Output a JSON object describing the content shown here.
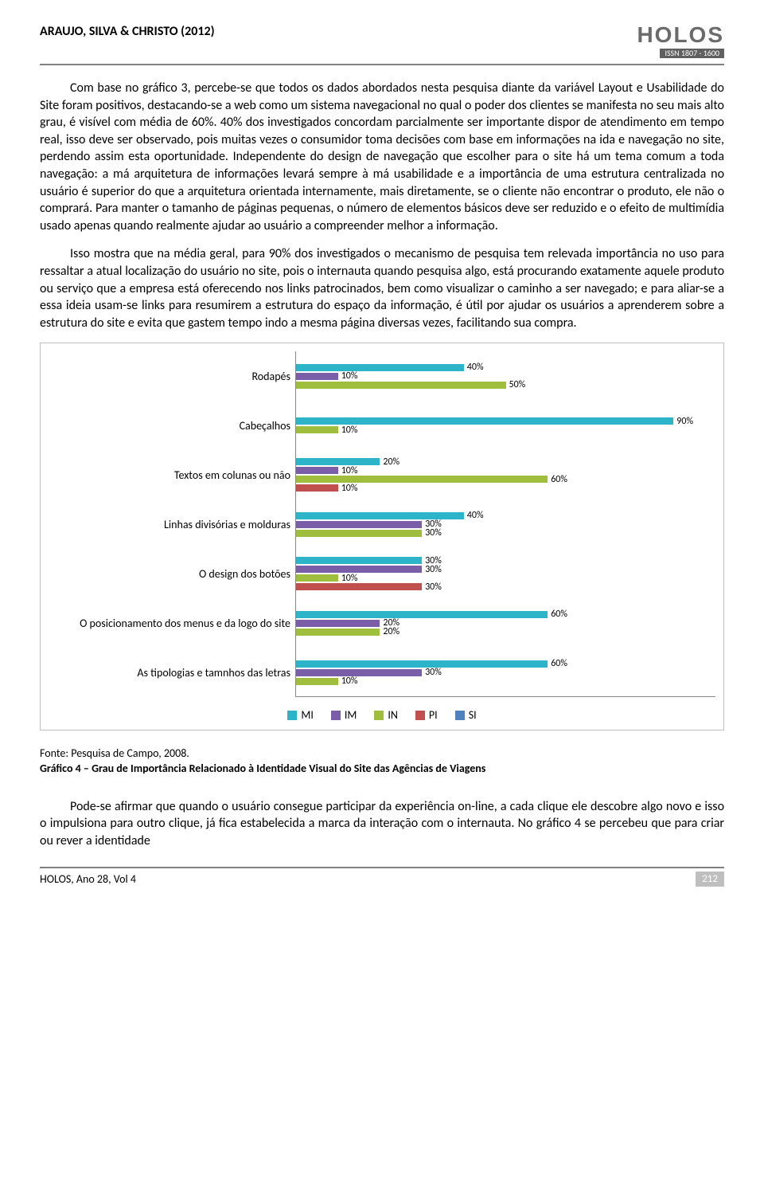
{
  "header": {
    "authors": "ARAUJO, SILVA & CHRISTO (2012)",
    "journal": "HOLOS",
    "issn": "ISSN 1807 - 1600"
  },
  "paragraphs": {
    "p1": "Com base no gráfico 3, percebe-se que todos os dados abordados nesta pesquisa diante da variável Layout e Usabilidade do Site foram positivos, destacando-se a web como um sistema navegacional no qual o poder dos clientes se manifesta no seu mais alto grau, é visível com média de 60%. 40% dos investigados concordam parcialmente ser importante dispor de atendimento em tempo real, isso deve ser observado, pois muitas vezes o consumidor toma decisões com base em informações na ida e navegação no site, perdendo assim esta oportunidade. Independente do design de navegação que escolher para o site há um tema comum a toda navegação: a má arquitetura de informações levará sempre à má usabilidade e a importância de uma estrutura centralizada no usuário é superior do que a arquitetura orientada internamente, mais diretamente, se o cliente não encontrar o produto, ele não o comprará. Para manter o tamanho de páginas pequenas, o número de elementos básicos deve ser reduzido e o efeito de multimídia usado apenas quando realmente ajudar ao usuário a compreender melhor a informação.",
    "p2": "Isso mostra que na média geral, para 90% dos investigados o mecanismo de pesquisa tem relevada importância no uso para ressaltar a atual localização do usuário no site, pois o internauta quando pesquisa algo, está procurando exatamente aquele produto ou serviço que a empresa está oferecendo nos links patrocinados, bem como visualizar o caminho a ser navegado; e para aliar-se a essa ideia usam-se links para resumirem a estrutura do espaço da informação, é útil por ajudar os usuários a aprenderem sobre a estrutura do site e evita que gastem tempo indo a mesma página diversas vezes, facilitando sua compra.",
    "p3": "Pode-se afirmar que quando o usuário consegue participar da experiência on-line, a cada clique ele descobre algo novo e isso o impulsiona para outro clique, já fica estabelecida a marca da interação com o internauta. No gráfico 4 se percebeu que para criar ou rever a identidade"
  },
  "chart": {
    "type": "bar-horizontal-grouped",
    "max_scale": 100,
    "colors": {
      "MI": "#2eb4c8",
      "IM": "#7a5fa8",
      "IN": "#9fbe3d",
      "PI": "#c0504d",
      "SI": "#4f81bd"
    },
    "categories": [
      {
        "label": "Rodapés",
        "bars": [
          {
            "series": "MI",
            "value": 40,
            "text": "40%"
          },
          {
            "series": "IM",
            "value": 10,
            "text": "10%"
          },
          {
            "series": "IN",
            "value": 50,
            "text": "50%"
          }
        ]
      },
      {
        "label": "Cabeçalhos",
        "bars": [
          {
            "series": "MI",
            "value": 90,
            "text": "90%"
          },
          {
            "series": "IN",
            "value": 10,
            "text": "10%"
          }
        ]
      },
      {
        "label": "Textos em colunas ou não",
        "bars": [
          {
            "series": "MI",
            "value": 20,
            "text": "20%"
          },
          {
            "series": "IM",
            "value": 10,
            "text": "10%"
          },
          {
            "series": "IN",
            "value": 60,
            "text": "60%"
          },
          {
            "series": "PI",
            "value": 10,
            "text": "10%"
          }
        ]
      },
      {
        "label": "Linhas divisórias e molduras",
        "bars": [
          {
            "series": "MI",
            "value": 40,
            "text": "40%"
          },
          {
            "series": "IM",
            "value": 30,
            "text": "30%"
          },
          {
            "series": "IN",
            "value": 30,
            "text": "30%"
          }
        ]
      },
      {
        "label": "O design dos botões",
        "bars": [
          {
            "series": "MI",
            "value": 30,
            "text": "30%"
          },
          {
            "series": "IM",
            "value": 30,
            "text": "30%"
          },
          {
            "series": "IN",
            "value": 10,
            "text": "10%"
          },
          {
            "series": "PI",
            "value": 30,
            "text": "30%"
          }
        ]
      },
      {
        "label": "O posicionamento dos menus e da logo do site",
        "bars": [
          {
            "series": "MI",
            "value": 60,
            "text": "60%"
          },
          {
            "series": "IM",
            "value": 20,
            "text": "20%"
          },
          {
            "series": "IN",
            "value": 20,
            "text": "20%"
          }
        ]
      },
      {
        "label": "As tipologias e tamnhos das letras",
        "bars": [
          {
            "series": "MI",
            "value": 60,
            "text": "60%"
          },
          {
            "series": "IM",
            "value": 30,
            "text": "30%"
          },
          {
            "series": "IN",
            "value": 10,
            "text": "10%"
          }
        ]
      }
    ],
    "legend": [
      {
        "series": "MI",
        "label": "MI"
      },
      {
        "series": "IM",
        "label": "IM"
      },
      {
        "series": "IN",
        "label": "IN"
      },
      {
        "series": "PI",
        "label": "PI"
      },
      {
        "series": "SI",
        "label": "SI"
      }
    ]
  },
  "caption": {
    "source": "Fonte: Pesquisa de Campo, 2008.",
    "title": "Gráfico 4 – Grau de Importância Relacionado à Identidade Visual do Site das Agências de Viagens"
  },
  "footer": {
    "left": "HOLOS, Ano 28, Vol 4",
    "page": "212"
  }
}
